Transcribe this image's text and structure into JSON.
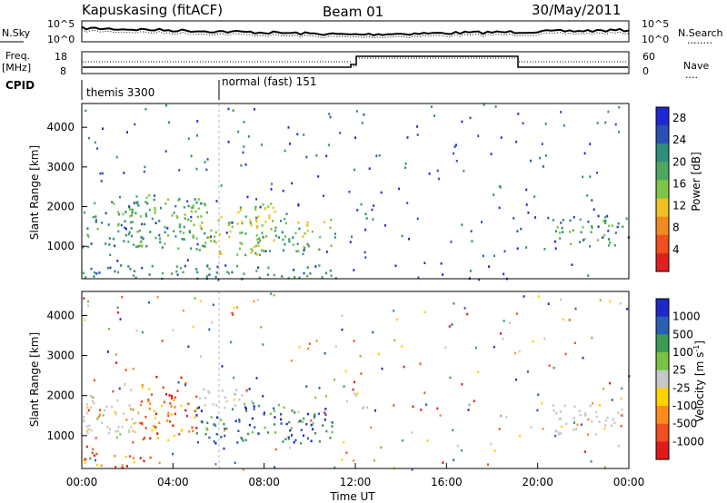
{
  "header": {
    "station": "Kapuskasing (fitACF)",
    "beam": "Beam 01",
    "date": "30/May/2011"
  },
  "nsky_panel": {
    "left_label": "N.Sky",
    "right_label": "N.Search",
    "right_marker": "........",
    "left_ticks": [
      "10^5",
      "10^0"
    ],
    "right_ticks": [
      "10^5",
      "10^0"
    ]
  },
  "freq_panel": {
    "left_label_1": "Freq.",
    "left_label_2": "[MHz]",
    "right_label": "Nave",
    "right_marker": "....",
    "left_ticks": [
      "18",
      "8"
    ],
    "right_ticks": [
      "60",
      "0"
    ]
  },
  "cpid_panel": {
    "label": "CPID",
    "modes": [
      {
        "name": "themis 3300",
        "start_hour": 0
      },
      {
        "name": "normal (fast) 151",
        "start_hour": 6
      }
    ]
  },
  "x_axis": {
    "label": "Time UT",
    "ticks": [
      "00:00",
      "04:00",
      "08:00",
      "12:00",
      "16:00",
      "20:00",
      "00:00"
    ],
    "range_hours": [
      0,
      24
    ]
  },
  "colors": {
    "power_scale": [
      "#1e28d2",
      "#2a4fb5",
      "#2f8e7a",
      "#4ea85d",
      "#7dc448",
      "#f0c020",
      "#f08a1e",
      "#f0501e",
      "#e02020"
    ],
    "velocity_scale": [
      "#e21919",
      "#f0501e",
      "#ff8c1a",
      "#ffd200",
      "#c8c8c8",
      "#76c442",
      "#3c9a54",
      "#2a5fb5",
      "#1e28c8"
    ],
    "ground_scatter": "#c8c8c8"
  },
  "chart_data": [
    {
      "type": "heatmap",
      "name": "power",
      "ylabel": "Slant Range [km]",
      "xlabel": "",
      "yticks": [
        "1000",
        "2000",
        "3000",
        "4000"
      ],
      "ylim": [
        180,
        4600
      ],
      "xlim": [
        0,
        24
      ],
      "colorbar": {
        "label": "Power [dB]",
        "ticks": [
          "4",
          "8",
          "12",
          "16",
          "20",
          "24",
          "28"
        ],
        "range": [
          0,
          30
        ]
      },
      "regions": [
        {
          "t0": 0.0,
          "t1": 2.8,
          "r0": 1000,
          "r1": 2150,
          "level": 2.5
        },
        {
          "t0": 2.0,
          "t1": 5.5,
          "r0": 950,
          "r1": 2400,
          "level": 3.0
        },
        {
          "t0": 5.0,
          "t1": 8.5,
          "r0": 800,
          "r1": 2100,
          "level": 4.0
        },
        {
          "t0": 7.5,
          "t1": 11.0,
          "r0": 900,
          "r1": 1800,
          "level": 3.5
        },
        {
          "t0": 11.8,
          "t1": 12.8,
          "r0": 1700,
          "r1": 2100,
          "level": 2.0
        },
        {
          "t0": 20.6,
          "t1": 24.0,
          "r0": 1050,
          "r1": 1800,
          "level": 2.5
        },
        {
          "t0": 0.0,
          "t1": 11.0,
          "r0": 200,
          "r1": 550,
          "level": 2.0
        }
      ]
    },
    {
      "type": "heatmap",
      "name": "velocity",
      "ylabel": "Slant Range [km]",
      "xlabel": "Time UT",
      "yticks": [
        "1000",
        "2000",
        "3000",
        "4000"
      ],
      "ylim": [
        180,
        4600
      ],
      "xlim": [
        0,
        24
      ],
      "colorbar": {
        "label": "Velocity [m s^-1]",
        "ticks": [
          "-1000",
          "-500",
          "-100",
          "-25",
          "25",
          "100",
          "500",
          "1000"
        ]
      },
      "regions": [
        {
          "t0": 0.0,
          "t1": 2.5,
          "r0": 1000,
          "r1": 2200,
          "kind": "ground"
        },
        {
          "t0": 2.5,
          "t1": 5.0,
          "r0": 900,
          "r1": 2500,
          "kind": "negative"
        },
        {
          "t0": 5.0,
          "t1": 7.5,
          "r0": 1700,
          "r1": 2200,
          "kind": "ground"
        },
        {
          "t0": 5.0,
          "t1": 11.0,
          "r0": 800,
          "r1": 1800,
          "kind": "positive"
        },
        {
          "t0": 11.5,
          "t1": 12.5,
          "r0": 1700,
          "r1": 2100,
          "kind": "ground"
        },
        {
          "t0": 20.6,
          "t1": 24.0,
          "r0": 1050,
          "r1": 1800,
          "kind": "ground"
        },
        {
          "t0": 0.0,
          "t1": 3.0,
          "r0": 200,
          "r1": 600,
          "kind": "negative"
        }
      ]
    }
  ]
}
